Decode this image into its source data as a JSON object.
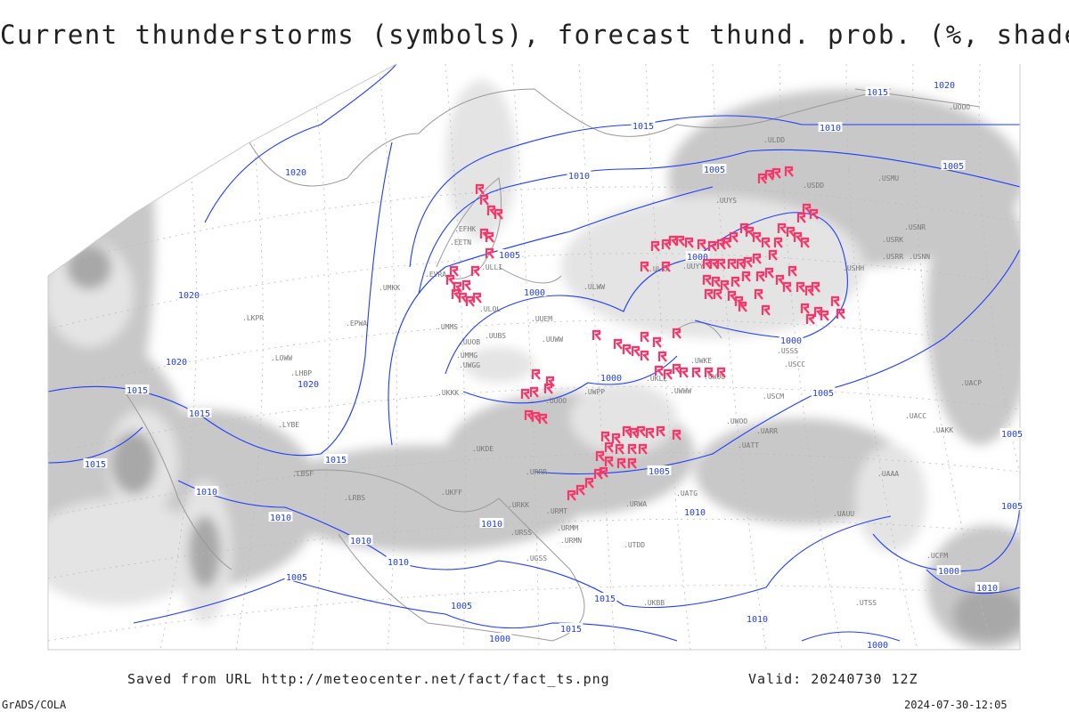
{
  "title": "Current thunderstorms (symbols), forecast thund. prob. (%, shaded)",
  "footer": {
    "source": "Saved from URL http://meteocenter.net/fact/fact_ts.png",
    "valid": "Valid: 20240730 12Z",
    "software": "GrADS/COLA",
    "generated": "2024-07-30-12:05"
  },
  "colors": {
    "isobar": "#1e3cff",
    "thunderstorm_symbol": "#ff3366",
    "coastline": "#999999",
    "shading_light": "#e4e4e4",
    "shading_mid": "#c8c8c8",
    "shading_dark": "#a8a8a8"
  },
  "legend": {
    "symbol_icon": "thunderstorm-flag-icon"
  },
  "isobar_labels": [
    "1020",
    "1015",
    "1015",
    "1010",
    "1020",
    "1010",
    "1005",
    "1005",
    "1005",
    "1000",
    "1000",
    "1020",
    "1000",
    "1000",
    "1020",
    "1015",
    "1020",
    "1015",
    "1005",
    "1015",
    "1015",
    "1005",
    "1010",
    "1010",
    "1010",
    "1010",
    "1010",
    "1010",
    "1005",
    "1015",
    "1005",
    "1015",
    "1000",
    "1010",
    "1000",
    "1005",
    "1005",
    "1010",
    "1000"
  ],
  "stations": [
    "ULLI",
    "ULOL",
    "ULWW",
    "UUEM",
    "UUWW",
    "UUBS",
    "UUOB",
    "UUOO",
    "UWGG",
    "UWPP",
    "UWKE",
    "UWWW",
    "UWOO",
    "UWUU",
    "ULKK",
    "UUYY",
    "UUYS",
    "USHH",
    "USRR",
    "USNN",
    "USRK",
    "USNR",
    "USSS",
    "USCC",
    "USCM",
    "UACC",
    "UAKK",
    "UATT",
    "UARR",
    "UATG",
    "URWA",
    "URRR",
    "URMT",
    "URMM",
    "URMN",
    "URSS",
    "UGSS",
    "UKBB",
    "UKKK",
    "UKLL",
    "UKDE",
    "UMMS",
    "UMMG",
    "UMKK",
    "EVRA",
    "EETN",
    "EFHK",
    "EPWA",
    "LKPR",
    "LOWW",
    "LHBP",
    "LYBE",
    "LBSF",
    "LRBS",
    "UKFF",
    "URKK",
    "UTDD",
    "UTSS",
    "UAAA",
    "UCFM",
    "ULDD",
    "USDD",
    "UOOO",
    "USMU",
    "UAUU",
    "UACP"
  ]
}
